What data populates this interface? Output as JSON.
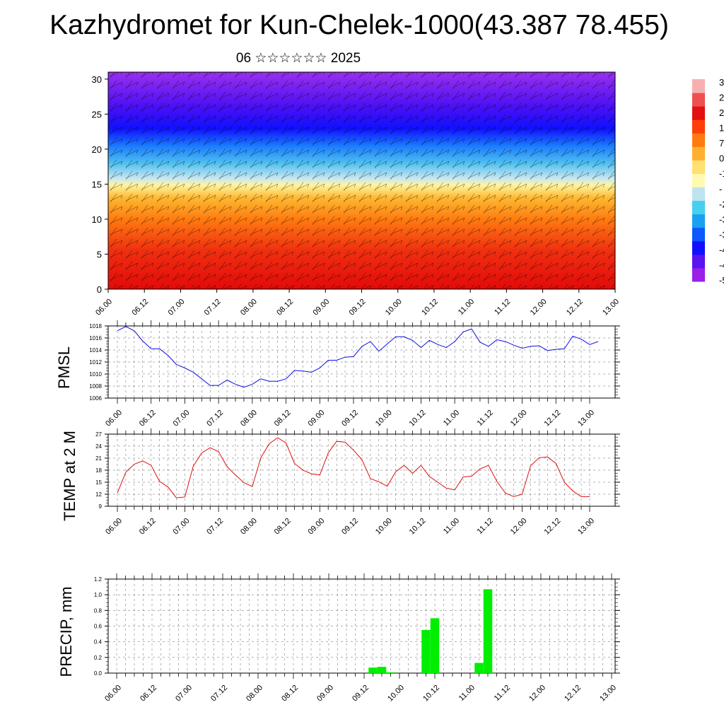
{
  "title": "Kazhydromet for Kun-Chelek-1000(43.387 78.455)",
  "date_label": "06 ☆☆☆☆☆☆ 2025",
  "time_labels": [
    "06.00",
    "06.12",
    "07.00",
    "07.12",
    "08.00",
    "08.12",
    "09.00",
    "09.12",
    "10.00",
    "10.12",
    "11.00",
    "11.12",
    "12.00",
    "12.12",
    "13.00"
  ],
  "colors": {
    "pmsl_line": "#1010e0",
    "temp_line": "#e01010",
    "precip_bar": "#00ee00",
    "colorbar": [
      "#9a1fe8",
      "#5a12f0",
      "#1010ff",
      "#0e58ff",
      "#1aa0f0",
      "#48cff0",
      "#bfe4ef",
      "#fffab2",
      "#ffe070",
      "#ffb030",
      "#ff7a10",
      "#ff3e08",
      "#e41010",
      "#ee5050",
      "#f6b0b0"
    ]
  },
  "colorbar_labels": [
    "3",
    "2",
    "2",
    "1",
    "7",
    "0",
    "-1",
    "-",
    "-2",
    "-3",
    "-3",
    "-4",
    "-4",
    "-5"
  ],
  "chart_data": [
    {
      "type": "heatmap",
      "title": "",
      "xlabel": "",
      "ylabel": "",
      "ylim": [
        0,
        31
      ],
      "yticks": [
        0,
        5,
        10,
        15,
        20,
        25,
        30
      ],
      "xticks": [
        "06.00",
        "06.12",
        "07.00",
        "07.12",
        "08.00",
        "08.12",
        "09.00",
        "09.12",
        "10.00",
        "10.12",
        "11.00",
        "11.12",
        "12.00",
        "12.12",
        "13.00"
      ],
      "field": "temperature with wind barbs (vertical profile)",
      "notes": "warm (red) near 0–10, yellow near 13–15, light blue near 16–19, blue/purple above 20"
    },
    {
      "type": "line",
      "title": "",
      "ylabel": "PMSL",
      "ylim": [
        1006,
        1018
      ],
      "yticks": [
        1006,
        1008,
        1010,
        1012,
        1014,
        1016,
        1018
      ],
      "xticks": [
        "06.00",
        "06.12",
        "07.00",
        "07.12",
        "08.00",
        "08.12",
        "09.00",
        "09.12",
        "10.00",
        "10.12",
        "11.00",
        "11.12",
        "12.00",
        "12.12",
        "13.00"
      ],
      "x_step_hours": 3,
      "values": [
        1017.2,
        1017.9,
        1017.2,
        1015.5,
        1014.2,
        1014.2,
        1013.1,
        1011.6,
        1011.0,
        1010.3,
        1009.2,
        1008.1,
        1008.1,
        1009.0,
        1008.3,
        1007.8,
        1008.3,
        1009.2,
        1008.8,
        1008.8,
        1009.2,
        1010.6,
        1010.5,
        1010.3,
        1011.0,
        1012.3,
        1012.3,
        1012.8,
        1012.9,
        1014.6,
        1015.4,
        1013.8,
        1015.0,
        1016.2,
        1016.2,
        1015.6,
        1014.4,
        1015.6,
        1014.9,
        1014.4,
        1015.4,
        1017.0,
        1017.5,
        1015.3,
        1014.6,
        1015.7,
        1015.4,
        1014.8,
        1014.3,
        1014.6,
        1014.7,
        1013.9,
        1014.1,
        1014.2,
        1016.3,
        1015.8,
        1014.9,
        1015.4
      ]
    },
    {
      "type": "line",
      "title": "",
      "ylabel": "TEMP at 2 M",
      "ylim": [
        9,
        27
      ],
      "yticks": [
        9,
        12,
        15,
        18,
        21,
        24,
        27
      ],
      "xticks": [
        "06.00",
        "06.12",
        "07.00",
        "07.12",
        "08.00",
        "08.12",
        "09.00",
        "09.12",
        "10.00",
        "10.12",
        "11.00",
        "11.12",
        "12.00",
        "12.12",
        "13.00"
      ],
      "x_step_hours": 3,
      "values": [
        12.3,
        17.5,
        19.5,
        20.3,
        19.2,
        15.2,
        13.8,
        11.1,
        11.3,
        19.0,
        22.3,
        23.6,
        22.6,
        18.9,
        16.8,
        14.9,
        13.9,
        21.1,
        24.6,
        26.1,
        24.8,
        19.7,
        18.0,
        17.1,
        16.8,
        22.3,
        25.2,
        25.0,
        23.0,
        20.6,
        15.9,
        15.1,
        14.0,
        17.6,
        19.2,
        17.2,
        19.2,
        16.4,
        15.0,
        13.5,
        13.1,
        16.3,
        16.5,
        18.3,
        19.2,
        15.2,
        12.3,
        11.4,
        12.0,
        19.1,
        21.1,
        21.3,
        19.7,
        15.0,
        12.8,
        11.4,
        11.4
      ]
    },
    {
      "type": "bar",
      "title": "",
      "ylabel": "PRECIP, mm",
      "ylim": [
        0,
        1.2
      ],
      "yticks": [
        "0.0",
        "0.2",
        "0.4",
        "0.6",
        "0.8",
        "1.0",
        "1.2"
      ],
      "xticks": [
        "06.00",
        "06.12",
        "07.00",
        "07.12",
        "08.00",
        "08.12",
        "09.00",
        "09.12",
        "10.00",
        "10.12",
        "11.00",
        "11.12",
        "12.00",
        "12.12",
        "13.00"
      ],
      "x_step_hours": 3,
      "bars": [
        {
          "step": 29,
          "value": 0.07
        },
        {
          "step": 30,
          "value": 0.08
        },
        {
          "step": 31,
          "value": 0.01
        },
        {
          "step": 35,
          "value": 0.55
        },
        {
          "step": 36,
          "value": 0.7
        },
        {
          "step": 41,
          "value": 0.13
        },
        {
          "step": 42,
          "value": 1.07
        }
      ]
    }
  ]
}
